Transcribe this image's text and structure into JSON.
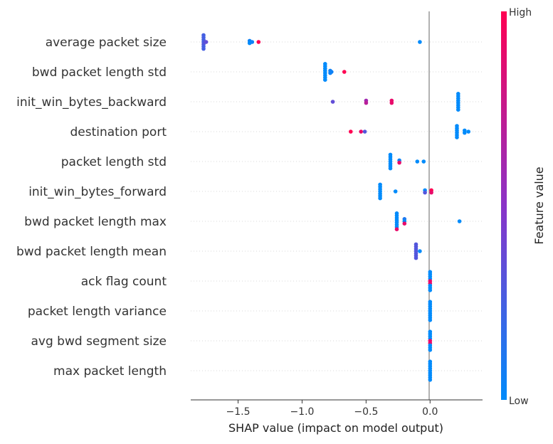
{
  "chart_data": {
    "type": "scatter",
    "subtype": "shap-beeswarm",
    "xlabel": "SHAP value (impact on model output)",
    "xlim": [
      -1.87,
      0.41
    ],
    "xticks": [
      -1.5,
      -1.0,
      -0.5,
      0.0
    ],
    "xtick_labels": [
      "−1.5",
      "−1.0",
      "−0.5",
      "0.0"
    ],
    "features": [
      "average packet size",
      "bwd packet length std",
      "init_win_bytes_backward",
      "destination port",
      "packet length std",
      "init_win_bytes_forward",
      "bwd packet length max",
      "bwd packet length mean",
      "ack flag count",
      "packet length variance",
      "avg bwd segment size",
      "max packet length"
    ],
    "colorbar": {
      "title": "Feature value",
      "high_label": "High",
      "low_label": "Low",
      "low_color": "#008bfb",
      "mid_color": "#8a33c8",
      "high_color": "#ff0052"
    },
    "zero_line_color": "#999999",
    "grid": "dotted-row-guides",
    "points": [
      [
        {
          "x": -1.77,
          "c": 0.25
        },
        {
          "x": -1.77,
          "c": 0.25
        },
        {
          "x": -1.77,
          "c": 0.25
        },
        {
          "x": -1.77,
          "c": 0.25
        },
        {
          "x": -1.77,
          "c": 0.3
        },
        {
          "x": -1.77,
          "c": 0.25
        },
        {
          "x": -1.77,
          "c": 0.25
        },
        {
          "x": -1.76,
          "c": 0.3
        },
        {
          "x": -1.75,
          "c": 0.35
        },
        {
          "x": -1.41,
          "c": 0.05
        },
        {
          "x": -1.41,
          "c": 0.0
        },
        {
          "x": -1.4,
          "c": 0.0
        },
        {
          "x": -1.39,
          "c": 0.05
        },
        {
          "x": -1.34,
          "c": 1.0
        },
        {
          "x": -0.08,
          "c": 0.0
        }
      ],
      [
        {
          "x": -0.82,
          "c": 0.0
        },
        {
          "x": -0.82,
          "c": 0.0
        },
        {
          "x": -0.82,
          "c": 0.0
        },
        {
          "x": -0.82,
          "c": 0.0
        },
        {
          "x": -0.82,
          "c": 0.0
        },
        {
          "x": -0.82,
          "c": 0.0
        },
        {
          "x": -0.82,
          "c": 0.0
        },
        {
          "x": -0.82,
          "c": 0.0
        },
        {
          "x": -0.78,
          "c": 0.05
        },
        {
          "x": -0.78,
          "c": 0.05
        },
        {
          "x": -0.77,
          "c": 0.05
        },
        {
          "x": -0.67,
          "c": 1.0
        }
      ],
      [
        {
          "x": -0.76,
          "c": 0.35
        },
        {
          "x": -0.5,
          "c": 0.6
        },
        {
          "x": -0.5,
          "c": 0.7
        },
        {
          "x": -0.3,
          "c": 0.9
        },
        {
          "x": -0.3,
          "c": 0.9
        },
        {
          "x": 0.22,
          "c": 0.0
        },
        {
          "x": 0.22,
          "c": 0.0
        },
        {
          "x": 0.22,
          "c": 0.0
        },
        {
          "x": 0.22,
          "c": 0.0
        },
        {
          "x": 0.22,
          "c": 0.0
        },
        {
          "x": 0.22,
          "c": 0.0
        },
        {
          "x": 0.22,
          "c": 0.0
        },
        {
          "x": 0.22,
          "c": 0.0
        }
      ],
      [
        {
          "x": -0.62,
          "c": 1.0
        },
        {
          "x": -0.54,
          "c": 0.9
        },
        {
          "x": -0.51,
          "c": 0.3
        },
        {
          "x": 0.21,
          "c": 0.0
        },
        {
          "x": 0.21,
          "c": 0.0
        },
        {
          "x": 0.21,
          "c": 0.0
        },
        {
          "x": 0.21,
          "c": 0.0
        },
        {
          "x": 0.21,
          "c": 0.0
        },
        {
          "x": 0.21,
          "c": 0.0
        },
        {
          "x": 0.27,
          "c": 0.0
        },
        {
          "x": 0.27,
          "c": 0.0
        },
        {
          "x": 0.3,
          "c": 0.0
        }
      ],
      [
        {
          "x": -0.31,
          "c": 0.0
        },
        {
          "x": -0.31,
          "c": 0.0
        },
        {
          "x": -0.31,
          "c": 0.0
        },
        {
          "x": -0.31,
          "c": 0.0
        },
        {
          "x": -0.31,
          "c": 0.0
        },
        {
          "x": -0.31,
          "c": 0.0
        },
        {
          "x": -0.31,
          "c": 0.0
        },
        {
          "x": -0.24,
          "c": 0.05
        },
        {
          "x": -0.24,
          "c": 0.9
        },
        {
          "x": -0.1,
          "c": 0.0
        },
        {
          "x": -0.05,
          "c": 0.0
        }
      ],
      [
        {
          "x": -0.39,
          "c": 0.0
        },
        {
          "x": -0.39,
          "c": 0.0
        },
        {
          "x": -0.39,
          "c": 0.0
        },
        {
          "x": -0.39,
          "c": 0.0
        },
        {
          "x": -0.39,
          "c": 0.0
        },
        {
          "x": -0.39,
          "c": 0.0
        },
        {
          "x": -0.39,
          "c": 0.0
        },
        {
          "x": -0.27,
          "c": 0.0
        },
        {
          "x": -0.04,
          "c": 0.0
        },
        {
          "x": -0.04,
          "c": 0.3
        },
        {
          "x": 0.01,
          "c": 1.0
        },
        {
          "x": 0.01,
          "c": 0.9
        }
      ],
      [
        {
          "x": -0.26,
          "c": 0.0
        },
        {
          "x": -0.26,
          "c": 0.0
        },
        {
          "x": -0.26,
          "c": 0.0
        },
        {
          "x": -0.26,
          "c": 0.0
        },
        {
          "x": -0.26,
          "c": 0.0
        },
        {
          "x": -0.26,
          "c": 0.0
        },
        {
          "x": -0.26,
          "c": 0.0
        },
        {
          "x": -0.26,
          "c": 0.9
        },
        {
          "x": -0.2,
          "c": 0.1
        },
        {
          "x": -0.2,
          "c": 0.0
        },
        {
          "x": -0.2,
          "c": 0.9
        },
        {
          "x": 0.23,
          "c": 0.0
        }
      ],
      [
        {
          "x": -0.11,
          "c": 0.3
        },
        {
          "x": -0.11,
          "c": 0.3
        },
        {
          "x": -0.11,
          "c": 0.3
        },
        {
          "x": -0.11,
          "c": 0.3
        },
        {
          "x": -0.11,
          "c": 0.3
        },
        {
          "x": -0.11,
          "c": 0.3
        },
        {
          "x": -0.11,
          "c": 0.3
        },
        {
          "x": -0.08,
          "c": 0.0
        }
      ],
      [
        {
          "x": 0.0,
          "c": 0.0
        },
        {
          "x": 0.0,
          "c": 0.0
        },
        {
          "x": 0.0,
          "c": 0.0
        },
        {
          "x": 0.0,
          "c": 0.0
        },
        {
          "x": 0.0,
          "c": 0.9
        },
        {
          "x": 0.0,
          "c": 0.9
        },
        {
          "x": 0.0,
          "c": 0.0
        },
        {
          "x": 0.0,
          "c": 0.0
        },
        {
          "x": 0.0,
          "c": 0.0
        }
      ],
      [
        {
          "x": 0.0,
          "c": 0.0
        },
        {
          "x": 0.0,
          "c": 0.0
        },
        {
          "x": 0.0,
          "c": 0.0
        },
        {
          "x": 0.0,
          "c": 0.0
        },
        {
          "x": 0.0,
          "c": 0.0
        },
        {
          "x": 0.0,
          "c": 0.0
        },
        {
          "x": 0.0,
          "c": 0.0
        },
        {
          "x": 0.0,
          "c": 0.0
        },
        {
          "x": 0.0,
          "c": 0.0
        }
      ],
      [
        {
          "x": 0.0,
          "c": 0.0
        },
        {
          "x": 0.0,
          "c": 0.0
        },
        {
          "x": 0.0,
          "c": 0.0
        },
        {
          "x": 0.0,
          "c": 0.0
        },
        {
          "x": 0.0,
          "c": 0.9
        },
        {
          "x": 0.0,
          "c": 0.9
        },
        {
          "x": 0.0,
          "c": 0.0
        },
        {
          "x": 0.0,
          "c": 0.0
        },
        {
          "x": 0.0,
          "c": 0.0
        }
      ],
      [
        {
          "x": 0.0,
          "c": 0.0
        },
        {
          "x": 0.0,
          "c": 0.0
        },
        {
          "x": 0.0,
          "c": 0.0
        },
        {
          "x": 0.0,
          "c": 0.0
        },
        {
          "x": 0.0,
          "c": 0.0
        },
        {
          "x": 0.0,
          "c": 0.0
        },
        {
          "x": 0.0,
          "c": 0.0
        },
        {
          "x": 0.0,
          "c": 0.0
        },
        {
          "x": 0.0,
          "c": 0.0
        }
      ]
    ]
  }
}
